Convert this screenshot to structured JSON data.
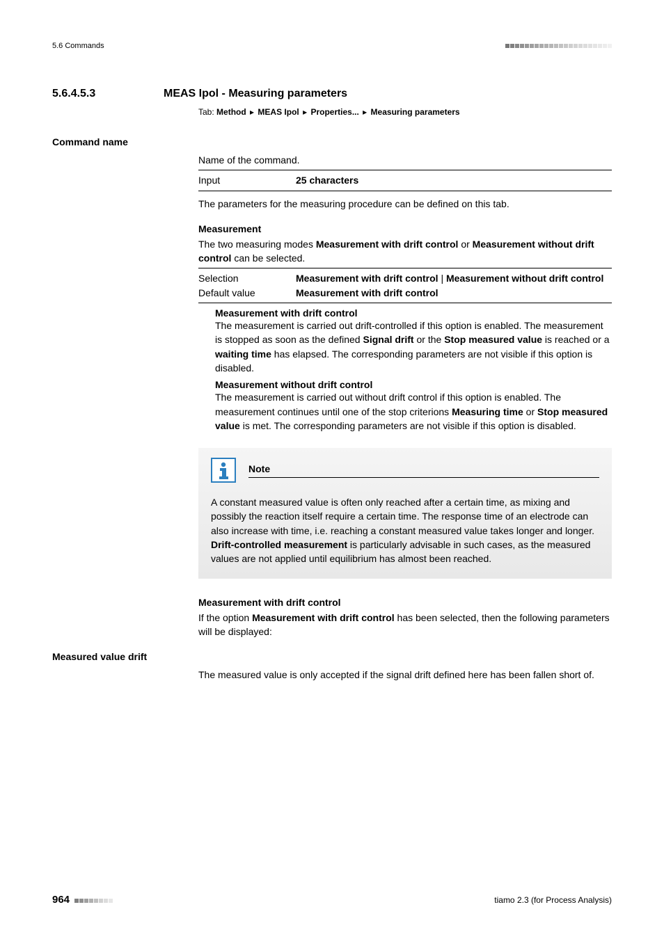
{
  "header": {
    "section_ref": "5.6 Commands",
    "squares": {
      "count": 22,
      "colors": [
        "#777777",
        "#808080",
        "#888888",
        "#909090",
        "#989898",
        "#9e9e9e",
        "#a4a4a4",
        "#aaaaaa",
        "#b0b0b0",
        "#b6b6b6",
        "#bcbcbc",
        "#c2c2c2",
        "#c8c8c8",
        "#cecece",
        "#d3d3d3",
        "#d8d8d8",
        "#dcdcdc",
        "#e0e0e0",
        "#e4e4e4",
        "#e8e8e8",
        "#ececec",
        "#f0f0f0"
      ]
    }
  },
  "section": {
    "number": "5.6.4.5.3",
    "title": "MEAS Ipol - Measuring parameters",
    "tab_prefix": "Tab:",
    "tab_path": [
      "Method",
      "MEAS Ipol",
      "Properties...",
      "Measuring parameters"
    ]
  },
  "command_name": {
    "label": "Command name",
    "desc": "Name of the command.",
    "input_label": "Input",
    "input_value": "25 characters",
    "after_text": "The parameters for the measuring procedure can be defined on this tab."
  },
  "measurement": {
    "heading": "Measurement",
    "intro_pre": "The two measuring modes ",
    "mode1": "Measurement with drift control",
    "intro_mid": " or ",
    "mode2": "Measurement without drift control",
    "intro_post": " can be selected.",
    "selection_label": "Selection",
    "selection_value_1": "Measurement with drift control",
    "selection_sep": " | ",
    "selection_value_2": "Measurement without drift control",
    "default_label": "Default value",
    "default_value": "Measurement with drift control",
    "opt1": {
      "label": "Measurement with drift control",
      "text_1": "The measurement is carried out drift-controlled if this option is enabled. The measurement is stopped as soon as the defined ",
      "b1": "Signal drift",
      "text_2": " or the ",
      "b2": "Stop measured value",
      "text_3": " is reached or a ",
      "b3": "waiting time",
      "text_4": " has elapsed. The corresponding parameters are not visible if this option is disabled."
    },
    "opt2": {
      "label": "Measurement without drift control",
      "text_1": "The measurement is carried out without drift control if this option is enabled. The measurement continues until one of the stop criterions ",
      "b1": "Measuring time",
      "text_2": " or ",
      "b2": "Stop measured value",
      "text_3": " is met. The corresponding parameters are not visible if this option is disabled."
    }
  },
  "note": {
    "title": "Note",
    "icon": {
      "bg": "#2b7fbf",
      "fg": "#ffffff"
    },
    "body_1": "A constant measured value is often only reached after a certain time, as mixing and possibly the reaction itself require a certain time. The response time of an electrode can also increase with time, i.e. reaching a constant measured value takes longer and longer. ",
    "b1": "Drift-controlled measurement",
    "body_2": " is particularly advisable in such cases, as the measured values are not applied until equilibrium has almost been reached."
  },
  "drift_section": {
    "heading": "Measurement with drift control",
    "intro_1": "If the option ",
    "b1": "Measurement with drift control",
    "intro_2": " has been selected, then the following parameters will be displayed:"
  },
  "measured_value_drift": {
    "label": "Measured value drift",
    "desc": "The measured value is only accepted if the signal drift defined here has been fallen short of."
  },
  "footer": {
    "page": "964",
    "product": "tiamo 2.3 (for Process Analysis)",
    "squares": {
      "count": 8,
      "colors": [
        "#808080",
        "#909090",
        "#a0a0a0",
        "#b0b0b0",
        "#c0c0c0",
        "#d0d0d0",
        "#dcdcdc",
        "#e6e6e6"
      ]
    }
  }
}
